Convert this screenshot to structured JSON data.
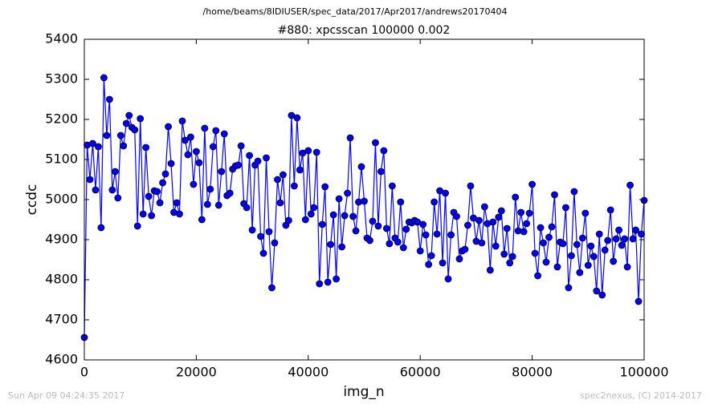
{
  "chart_data": {
    "type": "line",
    "header": "/home/beams/8IDIUSER/spec_data/2017/Apr2017/andrews20170404",
    "title": "#880: xpcsscan 100000 0.002",
    "xlabel": "img_n",
    "ylabel": "ccdc",
    "footer_left": "Sun Apr 09 04:24:35 2017",
    "footer_right": "spec2nexus, (C) 2014-2017",
    "xlim": [
      0,
      100000
    ],
    "xticks": [
      0,
      20000,
      40000,
      60000,
      80000,
      100000
    ],
    "ylim": [
      4600,
      5400
    ],
    "yticks": [
      4600,
      4700,
      4800,
      4900,
      5000,
      5100,
      5200,
      5300,
      5400
    ],
    "grid": false,
    "x": [
      0,
      500,
      1000,
      1500,
      2000,
      2500,
      3000,
      3500,
      4000,
      4500,
      5000,
      5500,
      6000,
      6500,
      7000,
      7500,
      8000,
      8500,
      9000,
      9500,
      10000,
      10500,
      11000,
      11500,
      12000,
      12500,
      13000,
      13500,
      14000,
      14500,
      15000,
      15500,
      16000,
      16500,
      17000,
      17500,
      18000,
      18500,
      19000,
      19500,
      20000,
      20500,
      21000,
      21500,
      22000,
      22500,
      23000,
      23500,
      24000,
      24500,
      25000,
      25500,
      26000,
      26500,
      27000,
      27500,
      28000,
      28500,
      29000,
      29500,
      30000,
      30500,
      31000,
      31500,
      32000,
      32500,
      33000,
      33500,
      34000,
      34500,
      35000,
      35500,
      36000,
      36500,
      37000,
      37500,
      38000,
      38500,
      39000,
      39500,
      40000,
      40500,
      41000,
      41500,
      42000,
      42500,
      43000,
      43500,
      44000,
      44500,
      45000,
      45500,
      46000,
      46500,
      47000,
      47500,
      48000,
      48500,
      49000,
      49500,
      50000,
      50500,
      51000,
      51500,
      52000,
      52500,
      53000,
      53500,
      54000,
      54500,
      55000,
      55500,
      56000,
      56500,
      57000,
      57500,
      58000,
      58500,
      59000,
      59500,
      60000,
      60500,
      61000,
      61500,
      62000,
      62500,
      63000,
      63500,
      64000,
      64500,
      65000,
      65500,
      66000,
      66500,
      67000,
      67500,
      68000,
      68500,
      69000,
      69500,
      70000,
      70500,
      71000,
      71500,
      72000,
      72500,
      73000,
      73500,
      74000,
      74500,
      75000,
      75500,
      76000,
      76500,
      77000,
      77500,
      78000,
      78500,
      79000,
      79500,
      80000,
      80500,
      81000,
      81500,
      82000,
      82500,
      83000,
      83500,
      84000,
      84500,
      85000,
      85500,
      86000,
      86500,
      87000,
      87500,
      88000,
      88500,
      89000,
      89500,
      90000,
      90500,
      91000,
      91500,
      92000,
      92500,
      93000,
      93500,
      94000,
      94500,
      95000,
      95500,
      96000,
      96500,
      97000,
      97500,
      98000,
      98500,
      99000,
      99500,
      100000
    ],
    "series": [
      {
        "name": "ccdc",
        "color": "#0000ff",
        "marker_edge": "#000000",
        "values": [
          4656,
          5136,
          5050,
          5140,
          5024,
          5132,
          4930,
          5304,
          5160,
          5250,
          5024,
          5070,
          5004,
          5160,
          5134,
          5190,
          5210,
          5180,
          5174,
          4934,
          5202,
          4964,
          5130,
          5008,
          4960,
          5022,
          5020,
          4992,
          5042,
          5064,
          5182,
          5090,
          4968,
          4992,
          4964,
          5196,
          5148,
          5112,
          5156,
          5038,
          5120,
          5092,
          4950,
          5178,
          4988,
          5026,
          5132,
          5172,
          4986,
          5070,
          5164,
          5010,
          5016,
          5076,
          5084,
          5086,
          5134,
          4990,
          4980,
          5110,
          4924,
          5086,
          5096,
          4908,
          4866,
          5104,
          4920,
          4780,
          4892,
          5050,
          4992,
          5062,
          4936,
          4948,
          5210,
          5034,
          5204,
          5074,
          5116,
          4950,
          5122,
          4964,
          4980,
          5118,
          4790,
          4938,
          5032,
          4794,
          4888,
          4962,
          4802,
          5002,
          4882,
          4960,
          5016,
          5154,
          4958,
          4922,
          4994,
          5082,
          4996,
          4904,
          4898,
          4946,
          5142,
          4934,
          5070,
          5122,
          4928,
          4890,
          5034,
          4904,
          4894,
          4994,
          4880,
          4926,
          4944,
          4942,
          4948,
          4944,
          4872,
          4938,
          4912,
          4838,
          4860,
          4994,
          4914,
          5022,
          4842,
          5016,
          4802,
          4912,
          4968,
          4958,
          4852,
          4872,
          4876,
          4936,
          5034,
          4954,
          4896,
          4948,
          4892,
          4982,
          4940,
          4824,
          4944,
          4884,
          4956,
          4972,
          4864,
          4928,
          4842,
          4858,
          5006,
          4922,
          4968,
          4920,
          4940,
          4966,
          5038,
          4866,
          4810,
          4930,
          4892,
          4844,
          4906,
          4932,
          5012,
          4832,
          4894,
          4890,
          4980,
          4780,
          4860,
          5020,
          4888,
          4818,
          4904,
          4966,
          4836,
          4884,
          4858,
          4772,
          4914,
          4762,
          4874,
          4898,
          4974,
          4846,
          4902,
          4924,
          4886,
          4902,
          4832,
          5036,
          4902,
          4924,
          4746,
          4914,
          4998
        ]
      }
    ]
  }
}
